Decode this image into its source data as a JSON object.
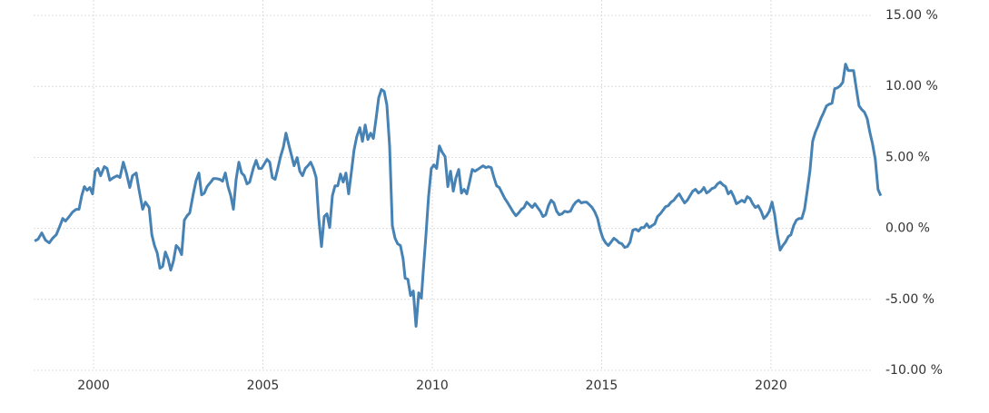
{
  "chart_data": {
    "type": "line",
    "x": [
      1998.26,
      1998.36,
      1998.47,
      1998.58,
      1998.69,
      1998.79,
      1998.9,
      1999.01,
      1999.09,
      1999.17,
      1999.28,
      1999.38,
      1999.49,
      1999.57,
      1999.65,
      1999.73,
      1999.81,
      1999.89,
      1999.97,
      2000.05,
      2000.13,
      2000.21,
      2000.32,
      2000.4,
      2000.48,
      2000.59,
      2000.7,
      2000.78,
      2000.88,
      2000.97,
      2001.07,
      2001.15,
      2001.26,
      2001.34,
      2001.45,
      2001.53,
      2001.64,
      2001.72,
      2001.8,
      2001.88,
      2001.96,
      2002.04,
      2002.12,
      2002.2,
      2002.28,
      2002.36,
      2002.44,
      2002.52,
      2002.6,
      2002.68,
      2002.76,
      2002.84,
      2002.95,
      2003.03,
      2003.11,
      2003.19,
      2003.27,
      2003.35,
      2003.46,
      2003.54,
      2003.62,
      2003.73,
      2003.81,
      2003.89,
      2003.97,
      2004.05,
      2004.13,
      2004.21,
      2004.29,
      2004.37,
      2004.45,
      2004.53,
      2004.61,
      2004.72,
      2004.8,
      2004.88,
      2004.96,
      2005.04,
      2005.12,
      2005.2,
      2005.28,
      2005.36,
      2005.44,
      2005.52,
      2005.6,
      2005.68,
      2005.76,
      2005.84,
      2005.92,
      2006.01,
      2006.09,
      2006.17,
      2006.25,
      2006.33,
      2006.41,
      2006.49,
      2006.57,
      2006.65,
      2006.73,
      2006.81,
      2006.89,
      2006.97,
      2007.05,
      2007.13,
      2007.21,
      2007.29,
      2007.37,
      2007.45,
      2007.53,
      2007.61,
      2007.69,
      2007.77,
      2007.86,
      2007.94,
      2008.02,
      2008.1,
      2008.18,
      2008.26,
      2008.34,
      2008.42,
      2008.5,
      2008.58,
      2008.66,
      2008.74,
      2008.82,
      2008.9,
      2008.98,
      2009.06,
      2009.14,
      2009.2,
      2009.28,
      2009.36,
      2009.44,
      2009.52,
      2009.6,
      2009.68,
      2009.73,
      2009.81,
      2009.89,
      2009.97,
      2010.05,
      2010.13,
      2010.21,
      2010.29,
      2010.38,
      2010.46,
      2010.54,
      2010.62,
      2010.7,
      2010.78,
      2010.86,
      2010.94,
      2011.02,
      2011.1,
      2011.18,
      2011.26,
      2011.34,
      2011.42,
      2011.5,
      2011.58,
      2011.66,
      2011.74,
      2011.82,
      2011.9,
      2011.98,
      2012.06,
      2012.14,
      2012.23,
      2012.31,
      2012.39,
      2012.47,
      2012.55,
      2012.63,
      2012.71,
      2012.79,
      2012.87,
      2012.95,
      2013.03,
      2013.11,
      2013.19,
      2013.27,
      2013.35,
      2013.43,
      2013.51,
      2013.59,
      2013.67,
      2013.75,
      2013.83,
      2013.91,
      2013.99,
      2014.08,
      2014.16,
      2014.24,
      2014.32,
      2014.4,
      2014.48,
      2014.56,
      2014.64,
      2014.72,
      2014.8,
      2014.88,
      2014.96,
      2015.04,
      2015.12,
      2015.2,
      2015.28,
      2015.36,
      2015.44,
      2015.52,
      2015.6,
      2015.68,
      2015.76,
      2015.84,
      2015.92,
      2016.01,
      2016.09,
      2016.17,
      2016.25,
      2016.33,
      2016.41,
      2016.49,
      2016.57,
      2016.65,
      2016.73,
      2016.81,
      2016.89,
      2016.97,
      2017.05,
      2017.13,
      2017.21,
      2017.29,
      2017.37,
      2017.45,
      2017.53,
      2017.61,
      2017.69,
      2017.77,
      2017.86,
      2017.94,
      2018.02,
      2018.1,
      2018.18,
      2018.26,
      2018.34,
      2018.42,
      2018.5,
      2018.58,
      2018.66,
      2018.74,
      2018.82,
      2018.9,
      2018.98,
      2019.06,
      2019.14,
      2019.22,
      2019.3,
      2019.38,
      2019.46,
      2019.54,
      2019.62,
      2019.71,
      2019.79,
      2019.87,
      2019.95,
      2020.03,
      2020.11,
      2020.19,
      2020.27,
      2020.35,
      2020.43,
      2020.51,
      2020.59,
      2020.67,
      2020.75,
      2020.83,
      2020.91,
      2020.99,
      2021.07,
      2021.15,
      2021.23,
      2021.31,
      2021.39,
      2021.47,
      2021.55,
      2021.64,
      2021.72,
      2021.8,
      2021.88,
      2021.96,
      2022.04,
      2022.12,
      2022.2,
      2022.28,
      2022.36,
      2022.44,
      2022.52,
      2022.6,
      2022.68,
      2022.76,
      2022.84,
      2022.92,
      2023.0,
      2023.08,
      2023.16,
      2023.24
    ],
    "series": [
      {
        "color": "#4682b4",
        "values": [
          -0.89,
          -0.77,
          -0.32,
          -0.83,
          -1.02,
          -0.7,
          -0.45,
          0.19,
          0.7,
          0.51,
          0.83,
          1.15,
          1.34,
          1.34,
          2.3,
          2.94,
          2.68,
          2.88,
          2.43,
          4.03,
          4.22,
          3.71,
          4.35,
          4.22,
          3.39,
          3.58,
          3.71,
          3.58,
          4.66,
          3.9,
          2.88,
          3.71,
          3.9,
          2.75,
          1.34,
          1.85,
          1.47,
          -0.45,
          -1.21,
          -1.73,
          -2.81,
          -2.68,
          -1.66,
          -2.17,
          -2.94,
          -2.3,
          -1.21,
          -1.41,
          -1.85,
          0.58,
          0.89,
          1.09,
          2.49,
          3.39,
          3.9,
          2.36,
          2.49,
          2.94,
          3.26,
          3.51,
          3.51,
          3.45,
          3.32,
          3.9,
          2.94,
          2.3,
          1.34,
          3.45,
          4.66,
          3.9,
          3.71,
          3.13,
          3.26,
          4.28,
          4.79,
          4.22,
          4.22,
          4.54,
          4.86,
          4.66,
          3.58,
          3.45,
          4.22,
          5.05,
          5.69,
          6.71,
          5.94,
          5.18,
          4.41,
          4.98,
          4.03,
          3.71,
          4.22,
          4.41,
          4.66,
          4.22,
          3.58,
          0.7,
          -1.28,
          0.83,
          1.02,
          0.06,
          2.3,
          3.0,
          3.0,
          3.83,
          3.26,
          3.9,
          2.43,
          3.9,
          5.5,
          6.45,
          7.09,
          6.13,
          7.28,
          6.26,
          6.71,
          6.33,
          7.73,
          9.2,
          9.78,
          9.65,
          8.69,
          5.81,
          0.19,
          -0.7,
          -1.09,
          -1.21,
          -2.17,
          -3.51,
          -3.58,
          -4.73,
          -4.41,
          -6.9,
          -4.54,
          -4.92,
          -3.13,
          -0.58,
          2.24,
          4.22,
          4.47,
          4.22,
          5.81,
          5.37,
          5.05,
          2.94,
          4.03,
          2.62,
          3.58,
          4.15,
          2.49,
          2.75,
          2.43,
          3.26,
          4.15,
          4.03,
          4.15,
          4.28,
          4.41,
          4.28,
          4.35,
          4.28,
          3.58,
          3.0,
          2.88,
          2.49,
          2.11,
          1.79,
          1.47,
          1.15,
          0.89,
          1.09,
          1.34,
          1.47,
          1.85,
          1.66,
          1.47,
          1.73,
          1.47,
          1.21,
          0.83,
          0.96,
          1.6,
          1.98,
          1.79,
          1.21,
          0.96,
          1.02,
          1.21,
          1.15,
          1.21,
          1.6,
          1.85,
          1.98,
          1.79,
          1.85,
          1.85,
          1.66,
          1.47,
          1.15,
          0.7,
          -0.13,
          -0.7,
          -1.02,
          -1.21,
          -0.96,
          -0.7,
          -0.83,
          -1.02,
          -1.09,
          -1.34,
          -1.28,
          -0.96,
          -0.13,
          -0.06,
          -0.19,
          0.06,
          0.06,
          0.32,
          0.06,
          0.19,
          0.32,
          0.83,
          1.02,
          1.28,
          1.53,
          1.6,
          1.85,
          1.98,
          2.24,
          2.43,
          2.11,
          1.79,
          1.98,
          2.3,
          2.62,
          2.75,
          2.49,
          2.62,
          2.88,
          2.49,
          2.62,
          2.81,
          2.88,
          3.13,
          3.26,
          3.07,
          2.94,
          2.43,
          2.62,
          2.24,
          1.73,
          1.85,
          1.98,
          1.85,
          2.24,
          2.11,
          1.73,
          1.47,
          1.6,
          1.21,
          0.7,
          0.89,
          1.21,
          1.85,
          0.96,
          -0.45,
          -1.53,
          -1.21,
          -0.96,
          -0.58,
          -0.45,
          0.19,
          0.58,
          0.7,
          0.7,
          1.34,
          2.62,
          4.03,
          6.13,
          6.77,
          7.22,
          7.73,
          8.12,
          8.63,
          8.75,
          8.82,
          9.84,
          9.9,
          10.03,
          10.29,
          11.57,
          11.12,
          11.12,
          11.12,
          9.84,
          8.63,
          8.37,
          8.18,
          7.73,
          6.77,
          5.94,
          4.86,
          2.75,
          2.3
        ]
      }
    ],
    "xlim": [
      1998.23,
      2023.38
    ],
    "xticks": [
      2000,
      2005,
      2010,
      2015,
      2020
    ],
    "ylim": [
      -10,
      15
    ],
    "yticks": [
      {
        "value": -10,
        "label": "-10.00 %"
      },
      {
        "value": -5,
        "label": "-5.00 %"
      },
      {
        "value": 0,
        "label": "0.00 %"
      },
      {
        "value": 5,
        "label": "5.00 %"
      },
      {
        "value": 10,
        "label": "10.00 %"
      },
      {
        "value": 15,
        "label": "15.00 %"
      }
    ],
    "grid": true
  }
}
